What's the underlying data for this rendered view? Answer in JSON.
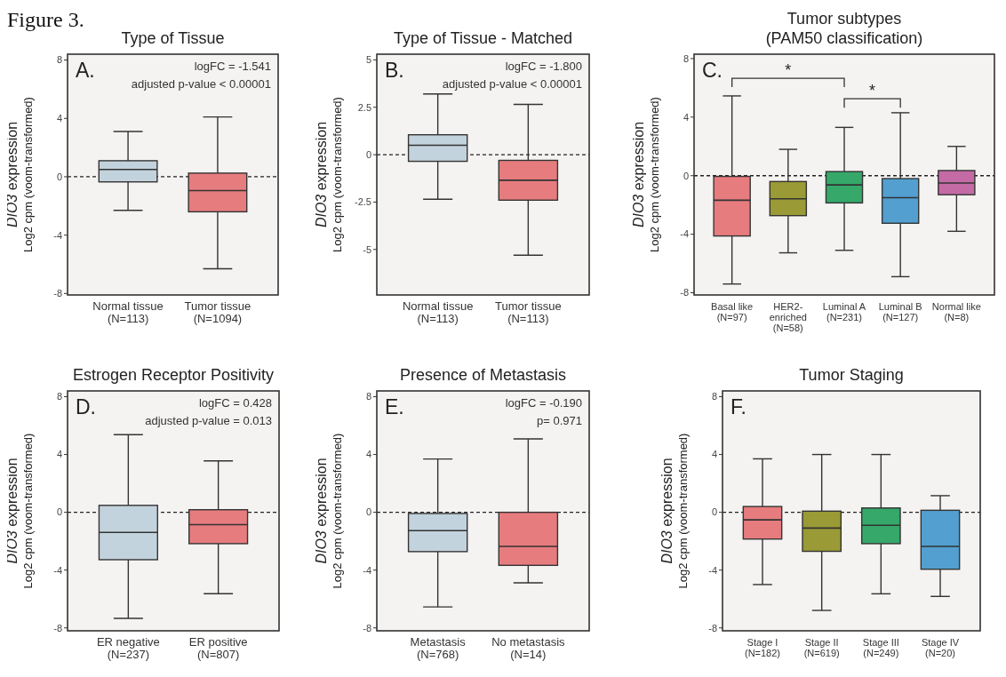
{
  "chart_data": [
    {
      "type": "box",
      "title": "Type of Tissue",
      "ylabel": "DIO3 expression\nLog2 cpm (voom-transformed)",
      "categories": [
        "Normal tissue\n(N=113)",
        "Tumor tissue\n(N=1094)"
      ],
      "colors": [
        "#c3d3dd",
        "#e77c7e"
      ],
      "boxes": [
        {
          "low": -2.3,
          "q1": -0.35,
          "median": 0.5,
          "q3": 1.1,
          "high": 3.1
        },
        {
          "low": -6.3,
          "q1": -2.4,
          "median": -0.95,
          "q3": 0.25,
          "high": 4.1
        }
      ],
      "ylim": [
        -8.1,
        8.4
      ],
      "yticks": [
        8,
        4,
        0,
        -4,
        -8
      ],
      "ref_lines": [
        {
          "axis": "y",
          "value": 0,
          "line_style": "dashed",
          "color": "#222222"
        }
      ],
      "annotations": [
        "Figure 3.",
        "A.",
        "logFC = -1.541",
        "adjusted p-value <  0.00001"
      ]
    },
    {
      "type": "box",
      "title": "Type of Tissue - Matched",
      "ylabel": "DIO3 expression\nLog2 cpm (voom-transformed)",
      "categories": [
        "Normal tissue\n(N=113)",
        "Tumor tissue\n(N=113)"
      ],
      "colors": [
        "#c3d3dd",
        "#e77c7e"
      ],
      "boxes": [
        {
          "low": -2.35,
          "q1": -0.35,
          "median": 0.5,
          "q3": 1.05,
          "high": 3.2
        },
        {
          "low": -5.3,
          "q1": -2.4,
          "median": -1.35,
          "q3": -0.3,
          "high": 2.65
        }
      ],
      "ylim": [
        -7.4,
        5.3
      ],
      "yticks": [
        5,
        2.5,
        0,
        -2.5,
        -5
      ],
      "ref_lines": [
        {
          "axis": "y",
          "value": 0,
          "line_style": "dashed",
          "color": "#222222"
        }
      ],
      "annotations": [
        "B.",
        "logFC = -1.800",
        "adjusted p-value <  0.00001"
      ]
    },
    {
      "type": "box",
      "title": "Tumor subtypes\n(PAM50 classification)",
      "ylabel": "DIO3 expression\nLog2 cpm (voom-transformed)",
      "categories": [
        "Basal like\n(N=97)",
        "HER2-\nenriched\n(N=58)",
        "Luminal A\n(N=231)",
        "Luminal B\n(N=127)",
        "Normal like\n(N=8)"
      ],
      "colors": [
        "#e77c7e",
        "#9a9a36",
        "#35a86a",
        "#529fd0",
        "#c46ba6"
      ],
      "boxes": [
        {
          "low": -7.4,
          "q1": -4.12,
          "median": -1.68,
          "q3": -0.05,
          "high": 5.45
        },
        {
          "low": -5.27,
          "q1": -2.73,
          "median": -1.58,
          "q3": -0.4,
          "high": 1.8
        },
        {
          "low": -5.1,
          "q1": -1.86,
          "median": -0.63,
          "q3": 0.28,
          "high": 3.3
        },
        {
          "low": -6.9,
          "q1": -3.25,
          "median": -1.5,
          "q3": -0.2,
          "high": 4.3
        },
        {
          "low": -3.8,
          "q1": -1.3,
          "median": -0.5,
          "q3": 0.35,
          "high": 2.0
        }
      ],
      "ylim": [
        -8.15,
        8.3
      ],
      "yticks": [
        8,
        4,
        0,
        -4,
        -8
      ],
      "ref_lines": [
        {
          "axis": "y",
          "value": 0,
          "line_style": "dashed",
          "color": "#222222"
        }
      ],
      "annotations": [
        "C.",
        "*",
        "*"
      ]
    },
    {
      "type": "box",
      "title": "Estrogen Receptor Positivity",
      "ylabel": "DIO3 expression\nLog2 cpm (voom-transformed)",
      "categories": [
        "ER negative\n(N=237)",
        "ER positive\n(N=807)"
      ],
      "colors": [
        "#c3d3dd",
        "#e77c7e"
      ],
      "boxes": [
        {
          "low": -7.34,
          "q1": -3.28,
          "median": -1.39,
          "q3": 0.48,
          "high": 5.37
        },
        {
          "low": -5.63,
          "q1": -2.17,
          "median": -0.85,
          "q3": 0.18,
          "high": 3.56
        }
      ],
      "ylim": [
        -8.2,
        8.4
      ],
      "yticks": [
        8,
        4,
        0,
        -4,
        -8
      ],
      "ref_lines": [
        {
          "axis": "y",
          "value": 0,
          "line_style": "dashed",
          "color": "#222222"
        }
      ],
      "annotations": [
        "D.",
        "logFC = 0.428",
        "adjusted p-value = 0.013"
      ]
    },
    {
      "type": "box",
      "title": "Presence of Metastasis",
      "ylabel": "DIO3 expression\nLog2 cpm (voom-transformed)",
      "categories": [
        "Metastasis\n(N=768)",
        "No metastasis\n(N=14)"
      ],
      "colors": [
        "#c3d3dd",
        "#e77c7e"
      ],
      "boxes": [
        {
          "low": -6.55,
          "q1": -2.72,
          "median": -1.27,
          "q3": -0.08,
          "high": 3.69
        },
        {
          "low": -4.88,
          "q1": -3.67,
          "median": -2.36,
          "q3": 0,
          "high": 5.08
        }
      ],
      "ylim": [
        -8.2,
        8.4
      ],
      "yticks": [
        8,
        4,
        0,
        -4,
        -8
      ],
      "ref_lines": [
        {
          "axis": "y",
          "value": 0,
          "line_style": "dashed",
          "color": "#222222"
        }
      ],
      "annotations": [
        "E.",
        "logFC = -0.190",
        "p= 0.971"
      ]
    },
    {
      "type": "box",
      "title": "Tumor Staging",
      "ylabel": "DIO3 expression\nLog2 cpm (voom-transformed)",
      "categories": [
        "Stage I\n(N=182)",
        "Stage II\n(N=619)",
        "Stage III\n(N=249)",
        "Stage IV\n(N=20)"
      ],
      "colors": [
        "#e77c7e",
        "#9a9a36",
        "#35a86a",
        "#529fd0"
      ],
      "boxes": [
        {
          "low": -5.0,
          "q1": -1.85,
          "median": -0.52,
          "q3": 0.4,
          "high": 3.7
        },
        {
          "low": -6.79,
          "q1": -2.7,
          "median": -1.09,
          "q3": 0.08,
          "high": 4.0
        },
        {
          "low": -5.64,
          "q1": -2.17,
          "median": -0.9,
          "q3": 0.3,
          "high": 4.0
        },
        {
          "low": -5.82,
          "q1": -3.94,
          "median": -2.36,
          "q3": 0.14,
          "high": 1.15
        }
      ],
      "ylim": [
        -8.2,
        8.4
      ],
      "yticks": [
        8,
        4,
        0,
        -4,
        -8
      ],
      "ref_lines": [
        {
          "axis": "y",
          "value": 0,
          "line_style": "dashed",
          "color": "#222222"
        }
      ],
      "annotations": [
        "F."
      ]
    }
  ]
}
